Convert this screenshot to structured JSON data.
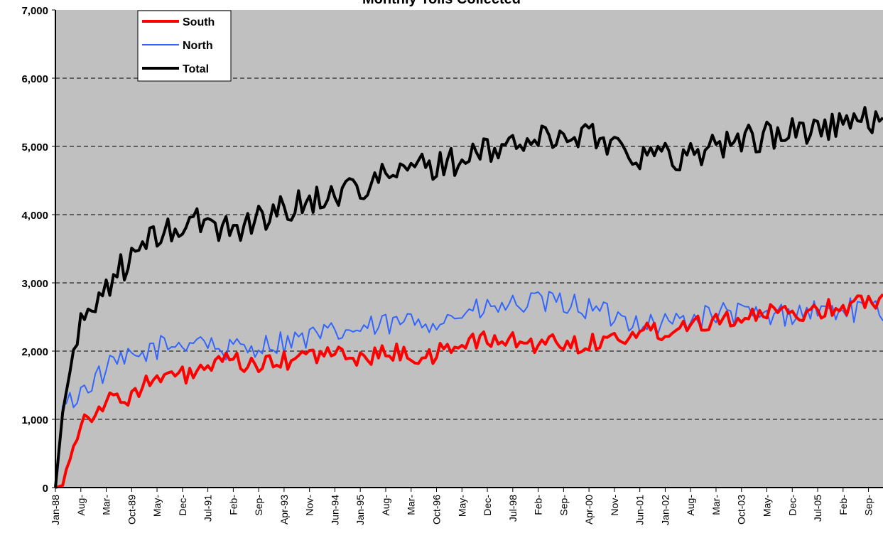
{
  "chart_data": {
    "type": "line",
    "title": "Monthly Tolls Collected",
    "xlabel": "",
    "ylabel": "",
    "ylim": [
      0,
      7000
    ],
    "yticks": [
      "0",
      "1,000",
      "2,000",
      "3,000",
      "4,000",
      "5,000",
      "6,000",
      "7,000"
    ],
    "x_tick_labels": [
      "Jan-88",
      "Aug-",
      "Mar-",
      "Oct-89",
      "May-",
      "Dec-",
      "Jul-91",
      "Feb-",
      "Sep-",
      "Apr-93",
      "Nov-",
      "Jun-94",
      "Jan-95",
      "Aug-",
      "Mar-",
      "Oct-96",
      "May-",
      "Dec-",
      "Jul-98",
      "Feb-",
      "Sep-",
      "Apr-00",
      "Nov-",
      "Jun-01",
      "Jan-02",
      "Aug-",
      "Mar-",
      "Oct-03",
      "May-",
      "Dec-",
      "Jul-05",
      "Feb-",
      "Sep-"
    ],
    "grid": "horizontal dashed",
    "legend": "top-left",
    "colors": {
      "South": "#ff0000",
      "North": "#3366ff",
      "Total": "#000000",
      "plot_bg": "#c0c0c0"
    },
    "x_start": "1988-01",
    "x_end": "2006-12",
    "series": [
      {
        "name": "South",
        "anchors": [
          [
            0,
            0
          ],
          [
            2,
            30
          ],
          [
            4,
            500
          ],
          [
            7,
            950
          ],
          [
            10,
            1100
          ],
          [
            14,
            1250
          ],
          [
            19,
            1300
          ],
          [
            24,
            1500
          ],
          [
            30,
            1600
          ],
          [
            36,
            1650
          ],
          [
            42,
            1750
          ],
          [
            48,
            1850
          ],
          [
            54,
            1800
          ],
          [
            60,
            1800
          ],
          [
            66,
            1900
          ],
          [
            72,
            1950
          ],
          [
            78,
            1950
          ],
          [
            84,
            1900
          ],
          [
            90,
            1950
          ],
          [
            96,
            2000
          ],
          [
            102,
            1850
          ],
          [
            108,
            2050
          ],
          [
            114,
            2150
          ],
          [
            120,
            2150
          ],
          [
            126,
            2150
          ],
          [
            132,
            2100
          ],
          [
            138,
            2150
          ],
          [
            144,
            2100
          ],
          [
            150,
            2150
          ],
          [
            156,
            2200
          ],
          [
            162,
            2300
          ],
          [
            168,
            2300
          ],
          [
            174,
            2400
          ],
          [
            180,
            2450
          ],
          [
            186,
            2500
          ],
          [
            192,
            2500
          ],
          [
            198,
            2550
          ],
          [
            204,
            2550
          ],
          [
            210,
            2600
          ],
          [
            216,
            2650
          ],
          [
            222,
            2700
          ],
          [
            228,
            2800
          ]
        ],
        "noise": 140
      },
      {
        "name": "North",
        "anchors": [
          [
            0,
            0
          ],
          [
            2,
            1200
          ],
          [
            5,
            1300
          ],
          [
            10,
            1550
          ],
          [
            16,
            1800
          ],
          [
            22,
            1900
          ],
          [
            28,
            2050
          ],
          [
            34,
            2100
          ],
          [
            40,
            2200
          ],
          [
            46,
            2000
          ],
          [
            52,
            2050
          ],
          [
            58,
            2100
          ],
          [
            64,
            2150
          ],
          [
            70,
            2200
          ],
          [
            76,
            2250
          ],
          [
            82,
            2300
          ],
          [
            88,
            2350
          ],
          [
            94,
            2400
          ],
          [
            100,
            2450
          ],
          [
            106,
            2450
          ],
          [
            112,
            2550
          ],
          [
            118,
            2600
          ],
          [
            124,
            2650
          ],
          [
            130,
            2700
          ],
          [
            136,
            2700
          ],
          [
            142,
            2700
          ],
          [
            148,
            2600
          ],
          [
            154,
            2500
          ],
          [
            160,
            2450
          ],
          [
            166,
            2400
          ],
          [
            172,
            2450
          ],
          [
            178,
            2500
          ],
          [
            184,
            2550
          ],
          [
            190,
            2550
          ],
          [
            196,
            2500
          ],
          [
            202,
            2550
          ],
          [
            208,
            2600
          ],
          [
            214,
            2600
          ],
          [
            220,
            2600
          ],
          [
            226,
            2600
          ],
          [
            228,
            2500
          ]
        ],
        "noise": 180
      },
      {
        "name": "Total",
        "anchors": [
          [
            0,
            0
          ],
          [
            2,
            1100
          ],
          [
            5,
            2000
          ],
          [
            8,
            2500
          ],
          [
            12,
            2800
          ],
          [
            16,
            3100
          ],
          [
            22,
            3400
          ],
          [
            28,
            3700
          ],
          [
            34,
            3800
          ],
          [
            40,
            3900
          ],
          [
            46,
            3800
          ],
          [
            52,
            3850
          ],
          [
            58,
            4000
          ],
          [
            64,
            4100
          ],
          [
            70,
            4200
          ],
          [
            76,
            4300
          ],
          [
            82,
            4400
          ],
          [
            88,
            4500
          ],
          [
            94,
            4600
          ],
          [
            100,
            4700
          ],
          [
            106,
            4750
          ],
          [
            112,
            4800
          ],
          [
            118,
            4900
          ],
          [
            124,
            5000
          ],
          [
            130,
            5100
          ],
          [
            136,
            5100
          ],
          [
            142,
            5200
          ],
          [
            148,
            5150
          ],
          [
            154,
            5050
          ],
          [
            160,
            4900
          ],
          [
            166,
            4850
          ],
          [
            172,
            4850
          ],
          [
            178,
            4950
          ],
          [
            184,
            5050
          ],
          [
            190,
            5100
          ],
          [
            196,
            5150
          ],
          [
            202,
            5200
          ],
          [
            208,
            5250
          ],
          [
            214,
            5300
          ],
          [
            220,
            5350
          ],
          [
            226,
            5400
          ],
          [
            228,
            5450
          ]
        ],
        "noise": 220
      }
    ]
  }
}
